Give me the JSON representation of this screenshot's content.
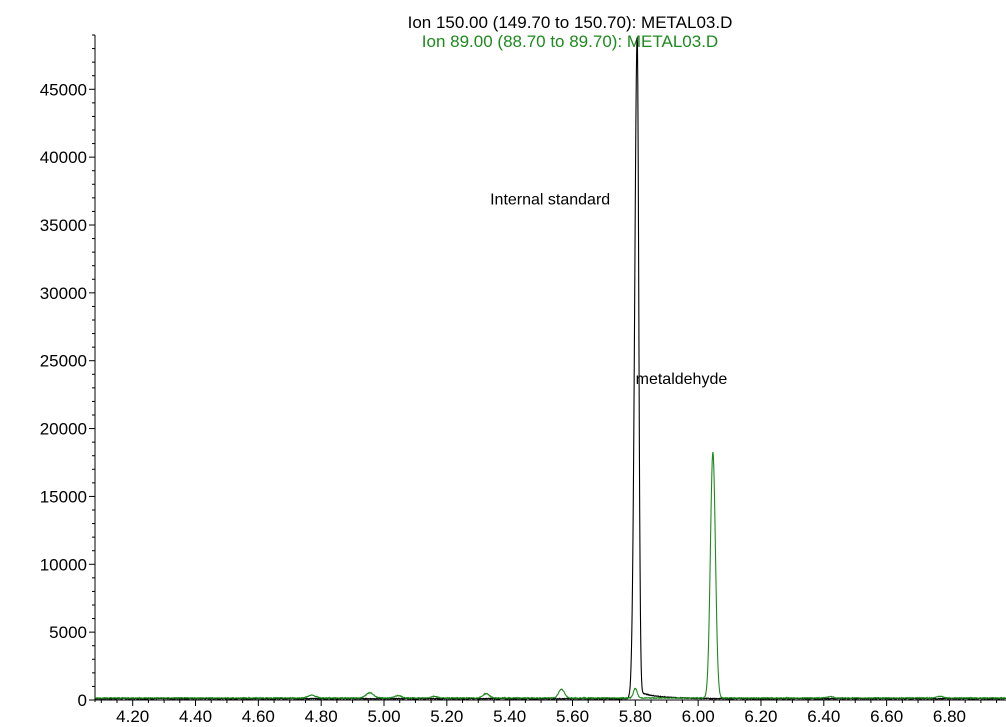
{
  "chart_data": {
    "type": "line",
    "titles": [
      {
        "text": "Ion 150.00 (149.70 to 150.70): METAL03.D",
        "color": "#000000"
      },
      {
        "text": "Ion  89.00 (88.70 to 89.70): METAL03.D",
        "color": "#1e8a1e"
      }
    ],
    "xlabel": "",
    "ylabel": "",
    "xlim": [
      4.08,
      6.98
    ],
    "ylim": [
      0,
      49000
    ],
    "x_ticks": [
      "4.20",
      "4.40",
      "4.60",
      "4.80",
      "5.00",
      "5.20",
      "5.40",
      "5.60",
      "5.80",
      "6.00",
      "6.20",
      "6.40",
      "6.60",
      "6.80"
    ],
    "x_tick_values": [
      4.2,
      4.4,
      4.6,
      4.8,
      5.0,
      5.2,
      5.4,
      5.6,
      5.8,
      6.0,
      6.2,
      6.4,
      6.6,
      6.8
    ],
    "y_ticks": [
      "0",
      "5000",
      "10000",
      "15000",
      "20000",
      "25000",
      "30000",
      "35000",
      "40000",
      "45000"
    ],
    "y_tick_values": [
      0,
      5000,
      10000,
      15000,
      20000,
      25000,
      30000,
      35000,
      40000,
      45000
    ],
    "grid": false,
    "annotations": [
      {
        "text": "Internal standard",
        "x": 5.72,
        "y": 36500,
        "anchor": "end"
      },
      {
        "text": "metaldehyde",
        "x": 5.801,
        "y": 23300,
        "anchor": "start"
      }
    ],
    "series": [
      {
        "color": "#000000",
        "baseline": 100,
        "peaks": [
          {
            "center": 5.806,
            "height": 48800,
            "width_left": 0.008,
            "width_right": 0.005
          }
        ],
        "tail": {
          "start": 5.815,
          "amplitude": 450,
          "decay": 0.06
        }
      },
      {
        "color": "#1e8a1e",
        "baseline": 150,
        "peaks": [
          {
            "center": 4.77,
            "height": 200,
            "width": 0.012
          },
          {
            "center": 4.955,
            "height": 380,
            "width": 0.012
          },
          {
            "center": 5.045,
            "height": 180,
            "width": 0.01
          },
          {
            "center": 5.16,
            "height": 120,
            "width": 0.01
          },
          {
            "center": 5.325,
            "height": 320,
            "width": 0.01
          },
          {
            "center": 5.565,
            "height": 650,
            "width": 0.009
          },
          {
            "center": 5.8,
            "height": 700,
            "width": 0.006
          },
          {
            "center": 6.047,
            "height": 18100,
            "width": 0.008
          },
          {
            "center": 6.42,
            "height": 100,
            "width": 0.01
          },
          {
            "center": 6.77,
            "height": 130,
            "width": 0.01
          }
        ]
      }
    ]
  }
}
